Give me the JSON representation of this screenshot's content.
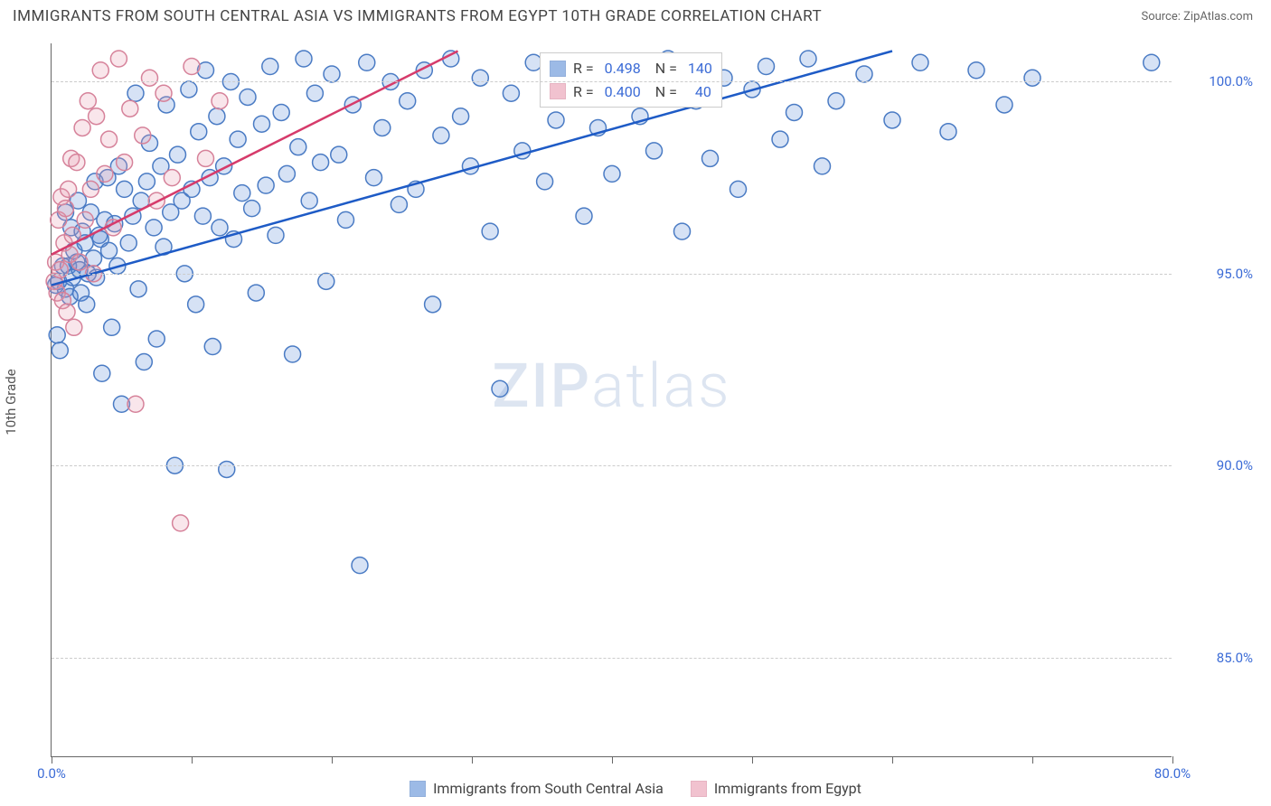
{
  "header": {
    "title": "IMMIGRANTS FROM SOUTH CENTRAL ASIA VS IMMIGRANTS FROM EGYPT 10TH GRADE CORRELATION CHART",
    "source": "Source: ZipAtlas.com"
  },
  "chart": {
    "type": "scatter",
    "y_axis_label": "10th Grade",
    "background_color": "#ffffff",
    "grid_color": "#cccccc",
    "axis_color": "#666666",
    "tick_label_color": "#3b6bd6",
    "xlim": [
      0,
      80
    ],
    "ylim": [
      82.4,
      101
    ],
    "x_ticks": [
      0,
      10,
      20,
      30,
      40,
      50,
      60,
      70,
      80
    ],
    "x_tick_labels": {
      "0": "0.0%",
      "80": "80.0%"
    },
    "y_gridlines": [
      85,
      90,
      95,
      100
    ],
    "y_tick_labels": [
      "85.0%",
      "90.0%",
      "95.0%",
      "100.0%"
    ],
    "watermark": "ZIPatlas",
    "marker_radius": 9,
    "marker_stroke_width": 1.5,
    "marker_fill_opacity": 0.25,
    "series": [
      {
        "name": "Immigrants from South Central Asia",
        "color": "#5b8dd6",
        "stroke": "#4a7bc4",
        "R": "0.498",
        "N": "140",
        "trendline": {
          "x1": 0,
          "y1": 94.7,
          "x2": 60,
          "y2": 100.8,
          "color": "#1e5bc6",
          "width": 2.5
        },
        "points": [
          [
            0.3,
            94.7
          ],
          [
            0.4,
            93.4
          ],
          [
            0.5,
            94.8
          ],
          [
            0.6,
            93.0
          ],
          [
            0.8,
            95.2
          ],
          [
            1.0,
            94.6
          ],
          [
            1.0,
            96.6
          ],
          [
            1.2,
            95.2
          ],
          [
            1.3,
            94.4
          ],
          [
            1.4,
            96.2
          ],
          [
            1.5,
            94.9
          ],
          [
            1.6,
            95.6
          ],
          [
            1.8,
            95.3
          ],
          [
            1.9,
            96.9
          ],
          [
            2.0,
            95.1
          ],
          [
            2.1,
            94.5
          ],
          [
            2.2,
            96.1
          ],
          [
            2.4,
            95.8
          ],
          [
            2.5,
            94.2
          ],
          [
            2.6,
            95.0
          ],
          [
            2.8,
            96.6
          ],
          [
            3.0,
            95.4
          ],
          [
            3.1,
            97.4
          ],
          [
            3.2,
            94.9
          ],
          [
            3.4,
            96.0
          ],
          [
            3.5,
            95.9
          ],
          [
            3.6,
            92.4
          ],
          [
            3.8,
            96.4
          ],
          [
            4.0,
            97.5
          ],
          [
            4.1,
            95.6
          ],
          [
            4.3,
            93.6
          ],
          [
            4.5,
            96.3
          ],
          [
            4.7,
            95.2
          ],
          [
            4.8,
            97.8
          ],
          [
            5.0,
            91.6
          ],
          [
            5.2,
            97.2
          ],
          [
            5.5,
            95.8
          ],
          [
            5.8,
            96.5
          ],
          [
            6.0,
            99.7
          ],
          [
            6.2,
            94.6
          ],
          [
            6.4,
            96.9
          ],
          [
            6.6,
            92.7
          ],
          [
            6.8,
            97.4
          ],
          [
            7.0,
            98.4
          ],
          [
            7.3,
            96.2
          ],
          [
            7.5,
            93.3
          ],
          [
            7.8,
            97.8
          ],
          [
            8.0,
            95.7
          ],
          [
            8.2,
            99.4
          ],
          [
            8.5,
            96.6
          ],
          [
            8.8,
            90.0
          ],
          [
            9.0,
            98.1
          ],
          [
            9.3,
            96.9
          ],
          [
            9.5,
            95.0
          ],
          [
            9.8,
            99.8
          ],
          [
            10.0,
            97.2
          ],
          [
            10.3,
            94.2
          ],
          [
            10.5,
            98.7
          ],
          [
            10.8,
            96.5
          ],
          [
            11.0,
            100.3
          ],
          [
            11.3,
            97.5
          ],
          [
            11.5,
            93.1
          ],
          [
            11.8,
            99.1
          ],
          [
            12.0,
            96.2
          ],
          [
            12.3,
            97.8
          ],
          [
            12.5,
            89.9
          ],
          [
            12.8,
            100.0
          ],
          [
            13.0,
            95.9
          ],
          [
            13.3,
            98.5
          ],
          [
            13.6,
            97.1
          ],
          [
            14.0,
            99.6
          ],
          [
            14.3,
            96.7
          ],
          [
            14.6,
            94.5
          ],
          [
            15.0,
            98.9
          ],
          [
            15.3,
            97.3
          ],
          [
            15.6,
            100.4
          ],
          [
            16.0,
            96.0
          ],
          [
            16.4,
            99.2
          ],
          [
            16.8,
            97.6
          ],
          [
            17.2,
            92.9
          ],
          [
            17.6,
            98.3
          ],
          [
            18.0,
            100.6
          ],
          [
            18.4,
            96.9
          ],
          [
            18.8,
            99.7
          ],
          [
            19.2,
            97.9
          ],
          [
            19.6,
            94.8
          ],
          [
            20.0,
            100.2
          ],
          [
            20.5,
            98.1
          ],
          [
            21.0,
            96.4
          ],
          [
            21.5,
            99.4
          ],
          [
            22.0,
            87.4
          ],
          [
            22.5,
            100.5
          ],
          [
            23.0,
            97.5
          ],
          [
            23.6,
            98.8
          ],
          [
            24.2,
            100.0
          ],
          [
            24.8,
            96.8
          ],
          [
            25.4,
            99.5
          ],
          [
            26.0,
            97.2
          ],
          [
            26.6,
            100.3
          ],
          [
            27.2,
            94.2
          ],
          [
            27.8,
            98.6
          ],
          [
            28.5,
            100.6
          ],
          [
            29.2,
            99.1
          ],
          [
            29.9,
            97.8
          ],
          [
            30.6,
            100.1
          ],
          [
            31.3,
            96.1
          ],
          [
            32.0,
            92.0
          ],
          [
            32.8,
            99.7
          ],
          [
            33.6,
            98.2
          ],
          [
            34.4,
            100.5
          ],
          [
            35.2,
            97.4
          ],
          [
            36.0,
            99.0
          ],
          [
            37.0,
            100.4
          ],
          [
            38.0,
            96.5
          ],
          [
            39.0,
            98.8
          ],
          [
            40.0,
            97.6
          ],
          [
            41.0,
            100.3
          ],
          [
            42.0,
            99.1
          ],
          [
            43.0,
            98.2
          ],
          [
            44.0,
            100.6
          ],
          [
            45.0,
            96.1
          ],
          [
            46.0,
            99.5
          ],
          [
            47.0,
            98.0
          ],
          [
            48.0,
            100.1
          ],
          [
            49.0,
            97.2
          ],
          [
            50.0,
            99.8
          ],
          [
            51.0,
            100.4
          ],
          [
            52.0,
            98.5
          ],
          [
            53.0,
            99.2
          ],
          [
            54.0,
            100.6
          ],
          [
            55.0,
            97.8
          ],
          [
            56.0,
            99.5
          ],
          [
            58.0,
            100.2
          ],
          [
            60.0,
            99.0
          ],
          [
            62.0,
            100.5
          ],
          [
            64.0,
            98.7
          ],
          [
            66.0,
            100.3
          ],
          [
            68.0,
            99.4
          ],
          [
            70.0,
            100.1
          ],
          [
            78.5,
            100.5
          ]
        ]
      },
      {
        "name": "Immigrants from Egypt",
        "color": "#e89bb0",
        "stroke": "#d6829a",
        "R": "0.400",
        "N": "40",
        "trendline": {
          "x1": 0,
          "y1": 95.5,
          "x2": 29,
          "y2": 100.8,
          "color": "#d63b6b",
          "width": 2.5
        },
        "points": [
          [
            0.2,
            94.8
          ],
          [
            0.3,
            95.3
          ],
          [
            0.4,
            94.5
          ],
          [
            0.5,
            96.4
          ],
          [
            0.6,
            95.1
          ],
          [
            0.7,
            97.0
          ],
          [
            0.8,
            94.3
          ],
          [
            0.9,
            95.8
          ],
          [
            1.0,
            96.7
          ],
          [
            1.1,
            94.0
          ],
          [
            1.2,
            97.2
          ],
          [
            1.3,
            95.5
          ],
          [
            1.4,
            98.0
          ],
          [
            1.5,
            96.0
          ],
          [
            1.6,
            93.6
          ],
          [
            1.8,
            97.9
          ],
          [
            2.0,
            95.3
          ],
          [
            2.2,
            98.8
          ],
          [
            2.4,
            96.4
          ],
          [
            2.6,
            99.5
          ],
          [
            2.8,
            97.2
          ],
          [
            3.0,
            95.0
          ],
          [
            3.2,
            99.1
          ],
          [
            3.5,
            100.3
          ],
          [
            3.8,
            97.6
          ],
          [
            4.1,
            98.5
          ],
          [
            4.4,
            96.2
          ],
          [
            4.8,
            100.6
          ],
          [
            5.2,
            97.9
          ],
          [
            5.6,
            99.3
          ],
          [
            6.0,
            91.6
          ],
          [
            6.5,
            98.6
          ],
          [
            7.0,
            100.1
          ],
          [
            7.5,
            96.9
          ],
          [
            8.0,
            99.7
          ],
          [
            8.6,
            97.5
          ],
          [
            9.2,
            88.5
          ],
          [
            10.0,
            100.4
          ],
          [
            11.0,
            98.0
          ],
          [
            12.0,
            99.5
          ]
        ]
      }
    ]
  },
  "legend_bottom": {
    "series1_label": "Immigrants from South Central Asia",
    "series2_label": "Immigrants from Egypt"
  }
}
